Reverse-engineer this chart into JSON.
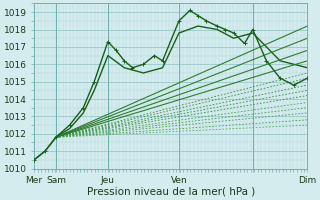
{
  "xlabel": "Pression niveau de la mer( hPa )",
  "ylim": [
    1010,
    1019.5
  ],
  "xlim": [
    0,
    1.0
  ],
  "background_color": "#d4ecee",
  "grid_color_minor": "#b0d8d8",
  "grid_color_major": "#90c0c0",
  "line_color_dark": "#1a5e1a",
  "line_color_mid": "#2e7d2e",
  "line_color_light": "#4a9a4a",
  "xtick_positions": [
    0.0,
    0.08,
    0.27,
    0.53,
    0.8,
    1.0
  ],
  "xtick_labels": [
    "Mer",
    "Sam",
    "Jeu",
    "Ven",
    "",
    "Dim"
  ],
  "ytick_positions": [
    1010,
    1011,
    1012,
    1013,
    1014,
    1015,
    1016,
    1017,
    1018,
    1019
  ],
  "vline_positions": [
    0.0,
    0.08,
    0.27,
    0.53,
    0.8,
    1.0
  ],
  "font_color": "#1a3a1a",
  "tick_fontsize": 6.5,
  "label_fontsize": 7.5,
  "series": [
    {
      "x": [
        0.0,
        0.04,
        0.08,
        0.13,
        0.18,
        0.22,
        0.27,
        0.3,
        0.33,
        0.36,
        0.4,
        0.44,
        0.47,
        0.53,
        0.57,
        0.6,
        0.63,
        0.67,
        0.7,
        0.73,
        0.77,
        0.8,
        0.85,
        0.9,
        0.95,
        1.0
      ],
      "y": [
        1010.5,
        1011.0,
        1011.8,
        1012.5,
        1013.5,
        1015.0,
        1017.3,
        1016.8,
        1016.2,
        1015.8,
        1016.0,
        1016.5,
        1016.2,
        1018.5,
        1019.1,
        1018.8,
        1018.5,
        1018.2,
        1018.0,
        1017.8,
        1017.2,
        1018.0,
        1016.2,
        1015.2,
        1014.8,
        1015.2
      ],
      "style": "solid_marker",
      "lw": 1.0,
      "color": "#1a5e1a"
    },
    {
      "x": [
        0.0,
        0.04,
        0.08,
        0.13,
        0.18,
        0.22,
        0.27,
        0.33,
        0.4,
        0.47,
        0.53,
        0.6,
        0.67,
        0.73,
        0.8,
        0.9,
        1.0
      ],
      "y": [
        1010.5,
        1011.0,
        1011.8,
        1012.3,
        1013.2,
        1014.5,
        1016.5,
        1015.8,
        1015.5,
        1015.8,
        1017.8,
        1018.2,
        1018.0,
        1017.5,
        1017.8,
        1016.2,
        1015.8
      ],
      "style": "solid",
      "lw": 1.0,
      "color": "#1a5e1a"
    },
    {
      "x": [
        0.08,
        1.0
      ],
      "y": [
        1011.8,
        1018.2
      ],
      "style": "solid",
      "lw": 0.8,
      "color": "#2e7d2e"
    },
    {
      "x": [
        0.08,
        1.0
      ],
      "y": [
        1011.8,
        1017.5
      ],
      "style": "solid",
      "lw": 0.8,
      "color": "#2e7d2e"
    },
    {
      "x": [
        0.08,
        1.0
      ],
      "y": [
        1011.8,
        1016.8
      ],
      "style": "solid",
      "lw": 0.8,
      "color": "#2e7d2e"
    },
    {
      "x": [
        0.08,
        1.0
      ],
      "y": [
        1011.8,
        1016.2
      ],
      "style": "solid",
      "lw": 0.8,
      "color": "#2e7d2e"
    },
    {
      "x": [
        0.08,
        1.0
      ],
      "y": [
        1011.8,
        1015.5
      ],
      "style": "dashed",
      "lw": 0.6,
      "color": "#3a8a3a"
    },
    {
      "x": [
        0.08,
        1.0
      ],
      "y": [
        1011.8,
        1015.2
      ],
      "style": "dashed",
      "lw": 0.6,
      "color": "#3a8a3a"
    },
    {
      "x": [
        0.08,
        1.0
      ],
      "y": [
        1011.8,
        1014.8
      ],
      "style": "dashed",
      "lw": 0.6,
      "color": "#3a8a3a"
    },
    {
      "x": [
        0.08,
        1.0
      ],
      "y": [
        1011.8,
        1014.5
      ],
      "style": "dashed",
      "lw": 0.6,
      "color": "#3a8a3a"
    },
    {
      "x": [
        0.08,
        1.0
      ],
      "y": [
        1011.8,
        1014.2
      ],
      "style": "dashed",
      "lw": 0.6,
      "color": "#3a8a3a"
    },
    {
      "x": [
        0.08,
        1.0
      ],
      "y": [
        1011.8,
        1013.8
      ],
      "style": "dashed",
      "lw": 0.6,
      "color": "#4a9a4a"
    },
    {
      "x": [
        0.08,
        1.0
      ],
      "y": [
        1011.8,
        1013.5
      ],
      "style": "dashed",
      "lw": 0.6,
      "color": "#4a9a4a"
    },
    {
      "x": [
        0.08,
        1.0
      ],
      "y": [
        1011.8,
        1013.2
      ],
      "style": "dashed",
      "lw": 0.6,
      "color": "#4a9a4a"
    },
    {
      "x": [
        0.08,
        1.0
      ],
      "y": [
        1011.8,
        1012.8
      ],
      "style": "dashed",
      "lw": 0.6,
      "color": "#4a9a4a"
    },
    {
      "x": [
        0.08,
        1.0
      ],
      "y": [
        1011.8,
        1012.5
      ],
      "style": "dashed",
      "lw": 0.6,
      "color": "#5aaa5a"
    }
  ]
}
